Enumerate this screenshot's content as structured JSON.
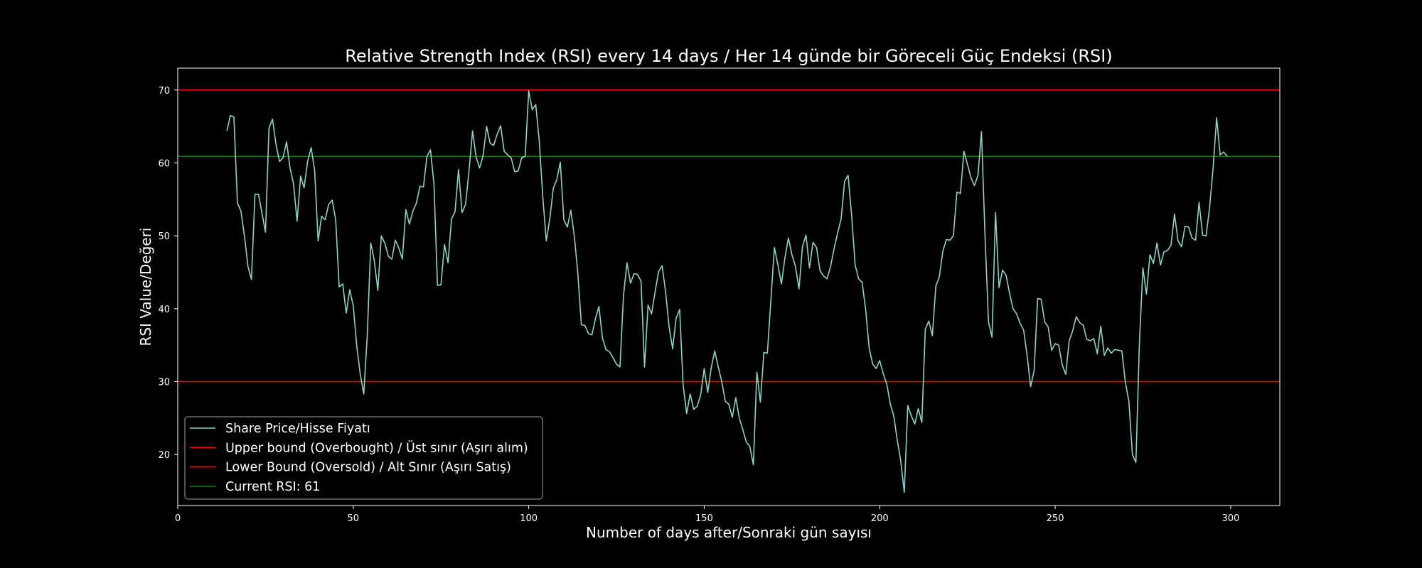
{
  "chart_data": {
    "type": "line",
    "title": "Relative Strength Index (RSI) every 14 days / Her 14 günde bir Göreceli Güç Endeksi (RSI)",
    "xlabel": "Number of days after/Sonraki gün sayısı",
    "ylabel": "RSI Value/Değeri",
    "xlim": [
      0,
      314
    ],
    "ylim": [
      13,
      73
    ],
    "xticks": [
      0,
      50,
      100,
      150,
      200,
      250,
      300
    ],
    "yticks": [
      20,
      30,
      40,
      50,
      60,
      70
    ],
    "grid": false,
    "legend_position": "lower-left",
    "background": "#000000",
    "series": [
      {
        "name": "Share Price/Hisse Fiyatı",
        "color": "#8dd3c7",
        "x": [
          14,
          15,
          16,
          17,
          18,
          19,
          20,
          21,
          22,
          23,
          24,
          25,
          26,
          27,
          28,
          29,
          30,
          31,
          32,
          33,
          34,
          35,
          36,
          37,
          38,
          39,
          40,
          41,
          42,
          43,
          44,
          45,
          46,
          47,
          48,
          49,
          50,
          51,
          52,
          53,
          54,
          55,
          56,
          57,
          58,
          59,
          60,
          61,
          62,
          63,
          64,
          65,
          66,
          67,
          68,
          69,
          70,
          71,
          72,
          73,
          74,
          75,
          76,
          77,
          78,
          79,
          80,
          81,
          82,
          83,
          84,
          85,
          86,
          87,
          88,
          89,
          90,
          91,
          92,
          93,
          94,
          95,
          96,
          97,
          98,
          99,
          100,
          101,
          102,
          103,
          104,
          105,
          106,
          107,
          108,
          109,
          110,
          111,
          112,
          113,
          114,
          115,
          116,
          117,
          118,
          119,
          120,
          121,
          122,
          123,
          124,
          125,
          126,
          127,
          128,
          129,
          130,
          131,
          132,
          133,
          134,
          135,
          136,
          137,
          138,
          139,
          140,
          141,
          142,
          143,
          144,
          145,
          146,
          147,
          148,
          149,
          150,
          151,
          152,
          153,
          154,
          155,
          156,
          157,
          158,
          159,
          160,
          161,
          162,
          163,
          164,
          165,
          166,
          167,
          168,
          169,
          170,
          171,
          172,
          173,
          174,
          175,
          176,
          177,
          178,
          179,
          180,
          181,
          182,
          183,
          184,
          185,
          186,
          187,
          188,
          189,
          190,
          191,
          192,
          193,
          194,
          195,
          196,
          197,
          198,
          199,
          200,
          201,
          202,
          203,
          204,
          205,
          206,
          207,
          208,
          209,
          210,
          211,
          212,
          213,
          214,
          215,
          216,
          217,
          218,
          219,
          220,
          221,
          222,
          223,
          224,
          225,
          226,
          227,
          228,
          229,
          230,
          231,
          232,
          233,
          234,
          235,
          236,
          237,
          238,
          239,
          240,
          241,
          242,
          243,
          244,
          245,
          246,
          247,
          248,
          249,
          250,
          251,
          252,
          253,
          254,
          255,
          256,
          257,
          258,
          259,
          260,
          261,
          262,
          263,
          264,
          265,
          266,
          267,
          268,
          269,
          270,
          271,
          272,
          273,
          274,
          275,
          276,
          277,
          278,
          279,
          280,
          281,
          282,
          283,
          284,
          285,
          286,
          287,
          288,
          289,
          290,
          291,
          292,
          293,
          294,
          295,
          296,
          297,
          298,
          299
        ],
        "y": [
          64.4,
          66.5,
          66.3,
          54.5,
          53.4,
          50.0,
          45.8,
          44.0,
          55.7,
          55.7,
          53.1,
          50.5,
          64.8,
          66.0,
          62.5,
          60.2,
          60.7,
          62.9,
          59.3,
          57.1,
          52.0,
          58.2,
          56.6,
          60.2,
          62.1,
          59.0,
          49.3,
          52.7,
          52.2,
          54.3,
          54.9,
          52.2,
          43.0,
          43.4,
          39.4,
          42.6,
          40.4,
          34.9,
          31.0,
          28.3,
          36.4,
          49.0,
          46.6,
          42.5,
          50.0,
          49.0,
          47.2,
          46.8,
          49.4,
          48.3,
          46.8,
          53.6,
          51.6,
          53.4,
          54.5,
          56.8,
          56.7,
          60.9,
          61.8,
          57.1,
          43.2,
          43.3,
          48.8,
          46.3,
          52.3,
          53.3,
          59.1,
          53.2,
          54.3,
          59.0,
          64.4,
          60.8,
          59.3,
          61.0,
          65.0,
          62.7,
          62.4,
          63.9,
          65.1,
          61.6,
          61.1,
          60.7,
          58.8,
          58.9,
          60.7,
          60.9,
          69.9,
          67.3,
          68.0,
          63.0,
          55.4,
          49.3,
          52.3,
          56.5,
          57.7,
          60.1,
          52.2,
          51.2,
          53.5,
          49.9,
          44.8,
          37.8,
          37.7,
          36.6,
          36.4,
          38.6,
          40.3,
          36.0,
          34.4,
          34.1,
          33.3,
          32.4,
          32.0,
          41.8,
          46.3,
          43.5,
          44.8,
          44.7,
          43.8,
          32.0,
          40.5,
          39.3,
          42.3,
          45.1,
          45.9,
          42.3,
          37.5,
          34.5,
          38.7,
          39.9,
          29.5,
          25.6,
          28.3,
          26.2,
          26.6,
          28.2,
          31.8,
          28.5,
          31.9,
          34.2,
          32.0,
          30.0,
          27.3,
          26.9,
          25.1,
          27.8,
          25.0,
          23.4,
          21.7,
          21.1,
          18.6,
          31.3,
          27.2,
          34.0,
          33.9,
          41.2,
          48.4,
          46.0,
          43.4,
          47.0,
          49.7,
          47.4,
          45.8,
          42.7,
          48.5,
          50.1,
          45.6,
          49.1,
          48.4,
          45.2,
          44.5,
          44.1,
          45.8,
          48.2,
          50.4,
          52.3,
          57.5,
          58.3,
          52.8,
          46.0,
          44.1,
          43.6,
          39.9,
          34.6,
          32.4,
          31.8,
          32.9,
          31.1,
          29.7,
          27.0,
          25.3,
          22.0,
          19.1,
          14.8,
          26.7,
          25.3,
          24.2,
          26.3,
          24.4,
          37.2,
          38.3,
          36.3,
          43.1,
          44.4,
          47.9,
          49.5,
          49.4,
          50.0,
          56.0,
          55.8,
          61.6,
          59.8,
          58.0,
          56.9,
          58.3,
          64.3,
          50.1,
          38.2,
          36.1,
          53.2,
          42.9,
          45.3,
          44.6,
          42.1,
          40.0,
          39.3,
          38.0,
          37.1,
          33.6,
          29.3,
          31.5,
          41.4,
          41.3,
          38.2,
          37.5,
          34.3,
          35.2,
          35.0,
          32.3,
          31.0,
          35.6,
          37.0,
          38.9,
          38.1,
          37.7,
          35.8,
          35.6,
          35.9,
          33.8,
          37.6,
          33.6,
          34.6,
          33.9,
          34.4,
          34.3,
          34.2,
          29.9,
          27.3,
          20.0,
          18.9,
          35.3,
          45.6,
          42.0,
          47.4,
          46.2,
          49.0,
          46.0,
          47.8,
          48.0,
          48.7,
          53.0,
          49.3,
          48.5,
          51.3,
          51.2,
          49.7,
          49.4,
          54.6,
          50.1,
          50.0,
          53.9,
          59.3,
          66.2,
          61.1,
          61.5,
          60.9
        ]
      },
      {
        "name": "Upper bound (Overbought) / Üst sınır (Aşırı alım)",
        "color": "#ff0000",
        "hline": 70
      },
      {
        "name": "Lower Bound (Oversold) / Alt Sınır (Aşırı Satış)",
        "color": "#ff0000",
        "hline": 30
      },
      {
        "name": "Current RSI: 61",
        "color": "#008000",
        "hline": 60.9
      }
    ]
  }
}
